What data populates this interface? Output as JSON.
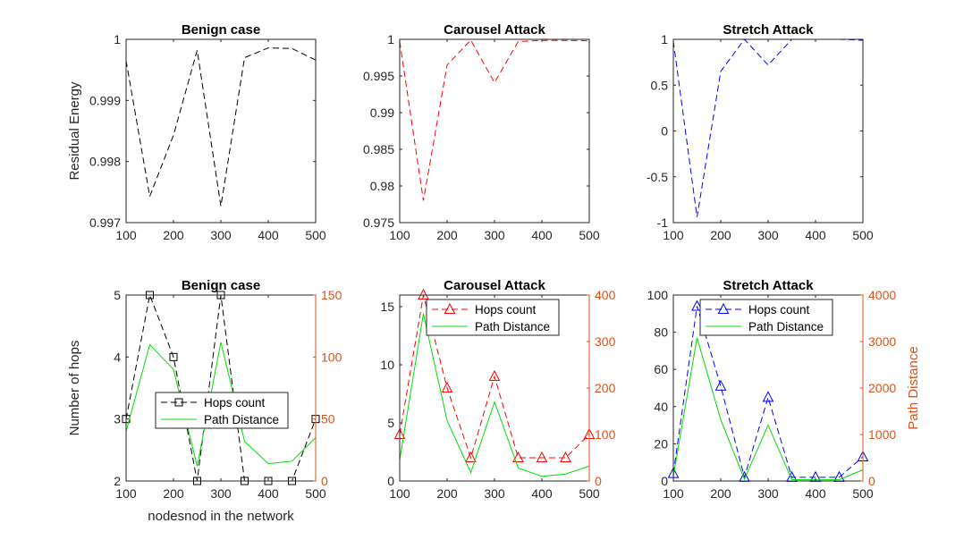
{
  "figure": {
    "xlabel": "nodesnod in the network"
  },
  "colors": {
    "axis": "#262626",
    "black": "#000000",
    "red": "#ff0000",
    "blue": "#0000ff",
    "green": "#00dd00",
    "orange": "#d95319"
  },
  "chart_data": [
    {
      "type": "line",
      "title": "Benign case",
      "ylabel": "Residual Energy",
      "xlim": [
        100,
        500
      ],
      "ylim": [
        0.997,
        1
      ],
      "xticks": [
        100,
        200,
        300,
        400,
        500
      ],
      "xtick_labels": [
        "100",
        "200",
        "300",
        "400",
        "500"
      ],
      "yticks": [
        0.997,
        0.998,
        0.999,
        1
      ],
      "ytick_labels": [
        "0.997",
        "0.998",
        "0.999",
        "1"
      ],
      "series": [
        {
          "name": "Residual Energy",
          "color": "black",
          "style": "dashed",
          "x": [
            100,
            150,
            200,
            250,
            300,
            350,
            400,
            450,
            500
          ],
          "y": [
            0.99965,
            0.99743,
            0.99843,
            0.99982,
            0.99727,
            0.9997,
            0.99986,
            0.99985,
            0.99966
          ]
        }
      ]
    },
    {
      "type": "line",
      "title": "Carousel Attack",
      "ylabel": "",
      "xlim": [
        100,
        500
      ],
      "ylim": [
        0.975,
        1
      ],
      "xticks": [
        100,
        200,
        300,
        400,
        500
      ],
      "xtick_labels": [
        "100",
        "200",
        "300",
        "400",
        "500"
      ],
      "yticks": [
        0.975,
        0.98,
        0.985,
        0.99,
        0.995,
        1
      ],
      "ytick_labels": [
        "0.975",
        "0.98",
        "0.985",
        "0.99",
        "0.995",
        "1"
      ],
      "series": [
        {
          "name": "Residual Energy",
          "color": "red",
          "style": "dashed",
          "x": [
            100,
            150,
            200,
            250,
            300,
            350,
            400,
            450,
            500
          ],
          "y": [
            0.9997,
            0.978,
            0.9965,
            0.9999,
            0.9941,
            0.9997,
            0.99985,
            0.99985,
            0.9998
          ]
        }
      ]
    },
    {
      "type": "line",
      "title": "Stretch Attack",
      "ylabel": "",
      "xlim": [
        100,
        500
      ],
      "ylim": [
        -1,
        1
      ],
      "xticks": [
        100,
        200,
        300,
        400,
        500
      ],
      "xtick_labels": [
        "100",
        "200",
        "300",
        "400",
        "500"
      ],
      "yticks": [
        -1,
        -0.5,
        0,
        0.5,
        1
      ],
      "ytick_labels": [
        "-1",
        "-0.5",
        "0",
        "0.5",
        "1"
      ],
      "series": [
        {
          "name": "Residual Energy",
          "color": "blue",
          "style": "dashed",
          "x": [
            100,
            150,
            200,
            250,
            300,
            350,
            400,
            450,
            500
          ],
          "y": [
            0.98,
            -0.94,
            0.65,
            1.0,
            0.72,
            1.0,
            1.0,
            1.0,
            0.99
          ]
        }
      ]
    },
    {
      "type": "line",
      "title": "Benign case",
      "ylabel": "Number of hops",
      "y2label": "",
      "xlim": [
        100,
        500
      ],
      "ylim": [
        2,
        5
      ],
      "y2lim": [
        0,
        150
      ],
      "xticks": [
        100,
        200,
        300,
        400,
        500
      ],
      "xtick_labels": [
        "100",
        "200",
        "300",
        "400",
        "500"
      ],
      "yticks": [
        2,
        3,
        4,
        5
      ],
      "ytick_labels": [
        "2",
        "3",
        "4",
        "5"
      ],
      "y2ticks": [
        0,
        50,
        100,
        150
      ],
      "y2tick_labels": [
        "0",
        "50",
        "100",
        "150"
      ],
      "legend": {
        "position": "center-left",
        "entries": [
          "Hops count",
          "Path Distance"
        ]
      },
      "series": [
        {
          "name": "Hops count",
          "axis": "left",
          "color": "black",
          "style": "dashed",
          "marker": "square",
          "x": [
            100,
            150,
            200,
            250,
            300,
            350,
            400,
            450,
            500
          ],
          "y": [
            3,
            5,
            4,
            2,
            5,
            2,
            2,
            2,
            3
          ]
        },
        {
          "name": "Path Distance",
          "axis": "right",
          "color": "green",
          "style": "solid",
          "x": [
            100,
            150,
            200,
            250,
            300,
            350,
            400,
            450,
            500
          ],
          "y": [
            40,
            110,
            90,
            12,
            112,
            32,
            14,
            16,
            35
          ]
        }
      ]
    },
    {
      "type": "line",
      "title": "Carousel Attack",
      "ylabel": "",
      "y2label": "",
      "xlim": [
        100,
        500
      ],
      "ylim": [
        0,
        16
      ],
      "y2lim": [
        0,
        400
      ],
      "xticks": [
        100,
        200,
        300,
        400,
        500
      ],
      "xtick_labels": [
        "100",
        "200",
        "300",
        "400",
        "500"
      ],
      "yticks": [
        0,
        5,
        10,
        15
      ],
      "ytick_labels": [
        "0",
        "5",
        "10",
        "15"
      ],
      "y2ticks": [
        0,
        100,
        200,
        300,
        400
      ],
      "y2tick_labels": [
        "0",
        "100",
        "200",
        "300",
        "400"
      ],
      "legend": {
        "position": "top",
        "entries": [
          "Hops count",
          "Path Distance"
        ]
      },
      "series": [
        {
          "name": "Hops count",
          "axis": "left",
          "color": "red",
          "style": "dashed",
          "marker": "triangle",
          "x": [
            100,
            150,
            200,
            250,
            300,
            350,
            400,
            450,
            500
          ],
          "y": [
            4,
            16,
            8,
            2,
            9,
            2,
            2,
            2,
            4
          ]
        },
        {
          "name": "Path Distance",
          "axis": "right",
          "color": "green",
          "style": "solid",
          "x": [
            100,
            150,
            200,
            250,
            300,
            350,
            400,
            450,
            500
          ],
          "y": [
            45,
            360,
            130,
            18,
            170,
            28,
            10,
            15,
            32
          ]
        }
      ]
    },
    {
      "type": "line",
      "title": "Stretch Attack",
      "ylabel": "",
      "y2label": "Path Distance",
      "xlim": [
        100,
        500
      ],
      "ylim": [
        0,
        100
      ],
      "y2lim": [
        0,
        4000
      ],
      "xticks": [
        100,
        200,
        300,
        400,
        500
      ],
      "xtick_labels": [
        "100",
        "200",
        "300",
        "400",
        "500"
      ],
      "yticks": [
        0,
        20,
        40,
        60,
        80,
        100
      ],
      "ytick_labels": [
        "0",
        "20",
        "40",
        "60",
        "80",
        "100"
      ],
      "y2ticks": [
        0,
        1000,
        2000,
        3000,
        4000
      ],
      "y2tick_labels": [
        "0",
        "1000",
        "2000",
        "3000",
        "4000"
      ],
      "legend": {
        "position": "top",
        "entries": [
          "Hops count",
          "Path Distance"
        ]
      },
      "series": [
        {
          "name": "Hops count",
          "axis": "left",
          "color": "blue",
          "style": "dashed",
          "marker": "triangle",
          "x": [
            100,
            150,
            200,
            250,
            300,
            350,
            400,
            450,
            500
          ],
          "y": [
            4,
            94,
            51,
            2,
            45,
            2,
            2,
            2,
            13
          ]
        },
        {
          "name": "Path Distance",
          "axis": "right",
          "color": "green",
          "style": "solid",
          "x": [
            100,
            150,
            200,
            250,
            300,
            350,
            400,
            450,
            500
          ],
          "y": [
            100,
            3080,
            1320,
            40,
            1200,
            30,
            25,
            30,
            240
          ]
        }
      ]
    }
  ]
}
